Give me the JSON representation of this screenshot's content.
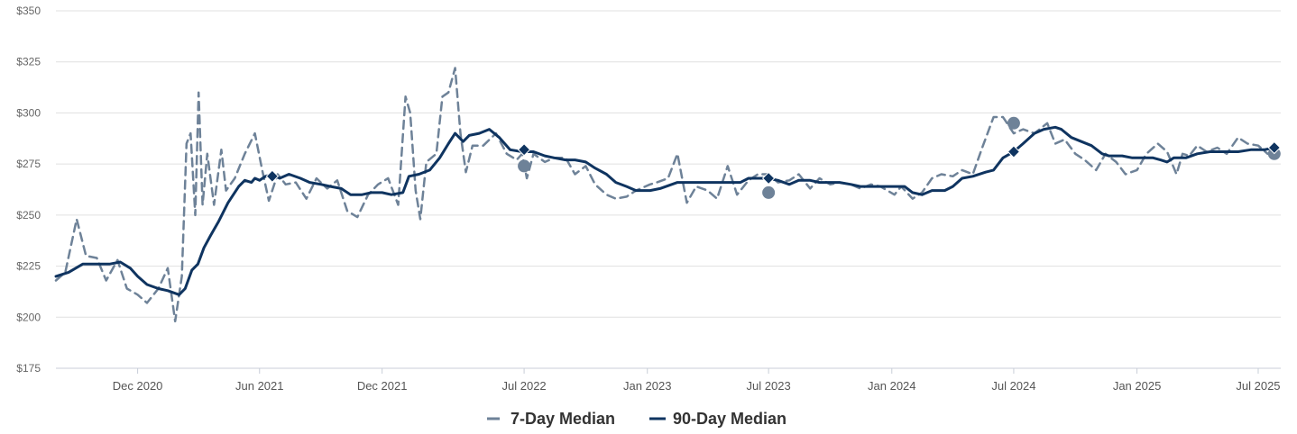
{
  "chart_data": {
    "type": "line",
    "title": "",
    "xlabel": "",
    "ylabel": "",
    "ylim": [
      175,
      350
    ],
    "y_ticks": [
      175,
      200,
      225,
      250,
      275,
      300,
      325,
      350
    ],
    "y_tick_labels": [
      "$175",
      "$200",
      "$225",
      "$250",
      "$275",
      "$300",
      "$325",
      "$350"
    ],
    "x_range": [
      "2020-08-01",
      "2025-08-01"
    ],
    "x_ticks": [
      {
        "date": "2020-12-01",
        "label": "Dec 2020"
      },
      {
        "date": "2021-06-01",
        "label": "Jun 2021"
      },
      {
        "date": "2021-12-01",
        "label": "Dec 2021"
      },
      {
        "date": "2022-07-01",
        "label": "Jul 2022"
      },
      {
        "date": "2023-01-01",
        "label": "Jan 2023"
      },
      {
        "date": "2023-07-01",
        "label": "Jul 2023"
      },
      {
        "date": "2024-01-01",
        "label": "Jan 2024"
      },
      {
        "date": "2024-07-01",
        "label": "Jul 2024"
      },
      {
        "date": "2025-01-01",
        "label": "Jan 2025"
      },
      {
        "date": "2025-07-01",
        "label": "Jul 2025"
      }
    ],
    "grid": true,
    "legend_position": "bottom-center",
    "colors": {
      "seven_day": "#6e8298",
      "ninety_day": "#0f3460"
    },
    "series": [
      {
        "name": "7-Day Median",
        "style": "dashed",
        "points": [
          [
            "2020-08-01",
            218
          ],
          [
            "2020-08-15",
            222
          ],
          [
            "2020-09-01",
            248
          ],
          [
            "2020-09-15",
            230
          ],
          [
            "2020-10-01",
            229
          ],
          [
            "2020-10-15",
            218
          ],
          [
            "2020-11-01",
            228
          ],
          [
            "2020-11-15",
            214
          ],
          [
            "2020-12-01",
            211
          ],
          [
            "2020-12-15",
            207
          ],
          [
            "2021-01-01",
            214
          ],
          [
            "2021-01-15",
            224
          ],
          [
            "2021-01-26",
            198
          ],
          [
            "2021-02-05",
            220
          ],
          [
            "2021-02-12",
            285
          ],
          [
            "2021-02-18",
            290
          ],
          [
            "2021-02-25",
            250
          ],
          [
            "2021-03-02",
            310
          ],
          [
            "2021-03-08",
            255
          ],
          [
            "2021-03-15",
            280
          ],
          [
            "2021-03-25",
            255
          ],
          [
            "2021-04-05",
            282
          ],
          [
            "2021-04-12",
            262
          ],
          [
            "2021-04-25",
            268
          ],
          [
            "2021-05-10",
            280
          ],
          [
            "2021-05-25",
            290
          ],
          [
            "2021-06-05",
            272
          ],
          [
            "2021-06-15",
            257
          ],
          [
            "2021-06-28",
            270
          ],
          [
            "2021-07-10",
            265
          ],
          [
            "2021-07-25",
            266
          ],
          [
            "2021-08-10",
            258
          ],
          [
            "2021-08-25",
            268
          ],
          [
            "2021-09-10",
            263
          ],
          [
            "2021-09-25",
            267
          ],
          [
            "2021-10-10",
            252
          ],
          [
            "2021-10-25",
            249
          ],
          [
            "2021-11-10",
            260
          ],
          [
            "2021-11-25",
            265
          ],
          [
            "2021-12-10",
            268
          ],
          [
            "2021-12-25",
            255
          ],
          [
            "2022-01-05",
            308
          ],
          [
            "2022-01-12",
            300
          ],
          [
            "2022-01-20",
            262
          ],
          [
            "2022-01-27",
            248
          ],
          [
            "2022-02-05",
            276
          ],
          [
            "2022-02-20",
            280
          ],
          [
            "2022-03-01",
            308
          ],
          [
            "2022-03-10",
            310
          ],
          [
            "2022-03-20",
            322
          ],
          [
            "2022-03-28",
            290
          ],
          [
            "2022-04-05",
            271
          ],
          [
            "2022-04-15",
            284
          ],
          [
            "2022-05-01",
            284
          ],
          [
            "2022-05-20",
            290
          ],
          [
            "2022-06-05",
            280
          ],
          [
            "2022-06-20",
            277
          ],
          [
            "2022-06-28",
            280
          ],
          [
            "2022-07-05",
            268
          ],
          [
            "2022-07-15",
            280
          ],
          [
            "2022-08-01",
            276
          ],
          [
            "2022-08-15",
            278
          ],
          [
            "2022-09-01",
            278
          ],
          [
            "2022-09-15",
            270
          ],
          [
            "2022-10-01",
            274
          ],
          [
            "2022-10-15",
            265
          ],
          [
            "2022-11-01",
            260
          ],
          [
            "2022-11-15",
            258
          ],
          [
            "2022-12-01",
            259
          ],
          [
            "2022-12-15",
            262
          ],
          [
            "2023-01-05",
            265
          ],
          [
            "2023-01-15",
            266
          ],
          [
            "2023-02-01",
            268
          ],
          [
            "2023-02-15",
            280
          ],
          [
            "2023-03-01",
            256
          ],
          [
            "2023-03-15",
            264
          ],
          [
            "2023-04-01",
            262
          ],
          [
            "2023-04-15",
            258
          ],
          [
            "2023-05-01",
            274
          ],
          [
            "2023-05-15",
            260
          ],
          [
            "2023-06-01",
            267
          ],
          [
            "2023-06-15",
            270
          ],
          [
            "2023-07-01",
            270
          ],
          [
            "2023-07-15",
            266
          ],
          [
            "2023-08-01",
            267
          ],
          [
            "2023-08-15",
            270
          ],
          [
            "2023-09-01",
            263
          ],
          [
            "2023-09-15",
            268
          ],
          [
            "2023-10-01",
            265
          ],
          [
            "2023-10-15",
            266
          ],
          [
            "2023-11-01",
            265
          ],
          [
            "2023-11-15",
            263
          ],
          [
            "2023-12-01",
            265
          ],
          [
            "2023-12-15",
            264
          ],
          [
            "2024-01-05",
            260
          ],
          [
            "2024-01-15",
            264
          ],
          [
            "2024-02-01",
            258
          ],
          [
            "2024-02-15",
            261
          ],
          [
            "2024-03-01",
            268
          ],
          [
            "2024-03-15",
            270
          ],
          [
            "2024-04-01",
            269
          ],
          [
            "2024-04-15",
            272
          ],
          [
            "2024-05-01",
            270
          ],
          [
            "2024-05-15",
            283
          ],
          [
            "2024-06-01",
            298
          ],
          [
            "2024-06-15",
            298
          ],
          [
            "2024-07-01",
            290
          ],
          [
            "2024-07-15",
            292
          ],
          [
            "2024-08-01",
            290
          ],
          [
            "2024-08-20",
            295
          ],
          [
            "2024-09-01",
            285
          ],
          [
            "2024-09-15",
            287
          ],
          [
            "2024-10-01",
            280
          ],
          [
            "2024-10-15",
            277
          ],
          [
            "2024-11-01",
            272
          ],
          [
            "2024-11-15",
            280
          ],
          [
            "2024-12-01",
            276
          ],
          [
            "2024-12-15",
            270
          ],
          [
            "2025-01-01",
            272
          ],
          [
            "2025-01-15",
            280
          ],
          [
            "2025-02-01",
            285
          ],
          [
            "2025-02-15",
            281
          ],
          [
            "2025-03-01",
            270
          ],
          [
            "2025-03-10",
            280
          ],
          [
            "2025-03-20",
            279
          ],
          [
            "2025-04-01",
            284
          ],
          [
            "2025-04-15",
            281
          ],
          [
            "2025-05-01",
            283
          ],
          [
            "2025-05-15",
            280
          ],
          [
            "2025-06-01",
            288
          ],
          [
            "2025-06-15",
            285
          ],
          [
            "2025-07-01",
            284
          ],
          [
            "2025-07-15",
            280
          ],
          [
            "2025-07-25",
            281
          ]
        ]
      },
      {
        "name": "90-Day Median",
        "style": "solid",
        "points": [
          [
            "2020-08-01",
            220
          ],
          [
            "2020-08-20",
            222
          ],
          [
            "2020-09-10",
            226
          ],
          [
            "2020-10-01",
            226
          ],
          [
            "2020-10-20",
            226
          ],
          [
            "2020-11-05",
            227
          ],
          [
            "2020-11-20",
            224
          ],
          [
            "2020-12-01",
            220
          ],
          [
            "2020-12-15",
            216
          ],
          [
            "2021-01-01",
            214
          ],
          [
            "2021-01-15",
            213
          ],
          [
            "2021-02-01",
            211
          ],
          [
            "2021-02-10",
            214
          ],
          [
            "2021-02-20",
            223
          ],
          [
            "2021-03-01",
            226
          ],
          [
            "2021-03-10",
            234
          ],
          [
            "2021-03-20",
            240
          ],
          [
            "2021-04-01",
            247
          ],
          [
            "2021-04-15",
            256
          ],
          [
            "2021-05-01",
            264
          ],
          [
            "2021-05-10",
            267
          ],
          [
            "2021-05-20",
            266
          ],
          [
            "2021-05-25",
            268
          ],
          [
            "2021-06-01",
            267
          ],
          [
            "2021-06-10",
            269
          ],
          [
            "2021-06-20",
            270
          ],
          [
            "2021-07-01",
            268
          ],
          [
            "2021-07-15",
            270
          ],
          [
            "2021-08-01",
            268
          ],
          [
            "2021-08-15",
            266
          ],
          [
            "2021-09-01",
            265
          ],
          [
            "2021-09-15",
            264
          ],
          [
            "2021-10-01",
            263
          ],
          [
            "2021-10-15",
            260
          ],
          [
            "2021-11-01",
            260
          ],
          [
            "2021-11-15",
            261
          ],
          [
            "2021-12-01",
            261
          ],
          [
            "2021-12-15",
            260
          ],
          [
            "2022-01-01",
            261
          ],
          [
            "2022-01-10",
            269
          ],
          [
            "2022-01-25",
            270
          ],
          [
            "2022-02-10",
            272
          ],
          [
            "2022-02-25",
            278
          ],
          [
            "2022-03-10",
            285
          ],
          [
            "2022-03-20",
            290
          ],
          [
            "2022-04-01",
            286
          ],
          [
            "2022-04-10",
            289
          ],
          [
            "2022-04-25",
            290
          ],
          [
            "2022-05-10",
            292
          ],
          [
            "2022-05-25",
            288
          ],
          [
            "2022-06-10",
            282
          ],
          [
            "2022-06-28",
            281
          ],
          [
            "2022-07-15",
            281
          ],
          [
            "2022-08-01",
            279
          ],
          [
            "2022-08-15",
            278
          ],
          [
            "2022-09-01",
            277
          ],
          [
            "2022-09-15",
            277
          ],
          [
            "2022-10-01",
            276
          ],
          [
            "2022-10-15",
            273
          ],
          [
            "2022-11-01",
            270
          ],
          [
            "2022-11-15",
            266
          ],
          [
            "2022-12-01",
            264
          ],
          [
            "2022-12-15",
            262
          ],
          [
            "2023-01-05",
            262
          ],
          [
            "2023-01-20",
            263
          ],
          [
            "2023-02-15",
            266
          ],
          [
            "2023-03-01",
            266
          ],
          [
            "2023-03-20",
            266
          ],
          [
            "2023-04-10",
            266
          ],
          [
            "2023-05-01",
            266
          ],
          [
            "2023-05-20",
            266
          ],
          [
            "2023-06-01",
            268
          ],
          [
            "2023-06-20",
            268
          ],
          [
            "2023-07-01",
            268
          ],
          [
            "2023-07-15",
            267
          ],
          [
            "2023-08-01",
            265
          ],
          [
            "2023-08-15",
            267
          ],
          [
            "2023-09-01",
            267
          ],
          [
            "2023-09-15",
            266
          ],
          [
            "2023-10-01",
            266
          ],
          [
            "2023-10-15",
            266
          ],
          [
            "2023-11-01",
            265
          ],
          [
            "2023-11-15",
            264
          ],
          [
            "2023-12-01",
            264
          ],
          [
            "2023-12-15",
            264
          ],
          [
            "2024-01-05",
            264
          ],
          [
            "2024-01-20",
            264
          ],
          [
            "2024-02-01",
            261
          ],
          [
            "2024-02-15",
            260
          ],
          [
            "2024-03-01",
            262
          ],
          [
            "2024-03-20",
            262
          ],
          [
            "2024-04-01",
            264
          ],
          [
            "2024-04-15",
            268
          ],
          [
            "2024-05-01",
            269
          ],
          [
            "2024-05-20",
            271
          ],
          [
            "2024-06-01",
            272
          ],
          [
            "2024-06-15",
            278
          ],
          [
            "2024-07-01",
            281
          ],
          [
            "2024-07-15",
            285
          ],
          [
            "2024-08-01",
            290
          ],
          [
            "2024-08-15",
            292
          ],
          [
            "2024-09-01",
            293
          ],
          [
            "2024-09-10",
            292
          ],
          [
            "2024-09-25",
            288
          ],
          [
            "2024-10-10",
            286
          ],
          [
            "2024-10-25",
            284
          ],
          [
            "2024-11-10",
            280
          ],
          [
            "2024-11-20",
            279
          ],
          [
            "2024-12-10",
            279
          ],
          [
            "2024-12-25",
            278
          ],
          [
            "2025-01-10",
            278
          ],
          [
            "2025-01-25",
            278
          ],
          [
            "2025-02-05",
            277
          ],
          [
            "2025-02-15",
            276
          ],
          [
            "2025-02-25",
            278
          ],
          [
            "2025-03-15",
            278
          ],
          [
            "2025-04-01",
            280
          ],
          [
            "2025-04-20",
            281
          ],
          [
            "2025-05-10",
            281
          ],
          [
            "2025-06-01",
            281
          ],
          [
            "2025-06-20",
            282
          ],
          [
            "2025-07-10",
            282
          ],
          [
            "2025-07-25",
            283
          ]
        ]
      }
    ],
    "markers": {
      "seven_day_circles": [
        [
          "2022-07-01",
          274
        ],
        [
          "2023-07-01",
          261
        ],
        [
          "2024-07-01",
          295
        ],
        [
          "2025-07-25",
          280
        ]
      ],
      "ninety_day_diamonds": [
        [
          "2021-06-20",
          269
        ],
        [
          "2022-07-01",
          282
        ],
        [
          "2023-07-01",
          268
        ],
        [
          "2024-07-01",
          281
        ],
        [
          "2025-07-25",
          283
        ]
      ]
    }
  }
}
